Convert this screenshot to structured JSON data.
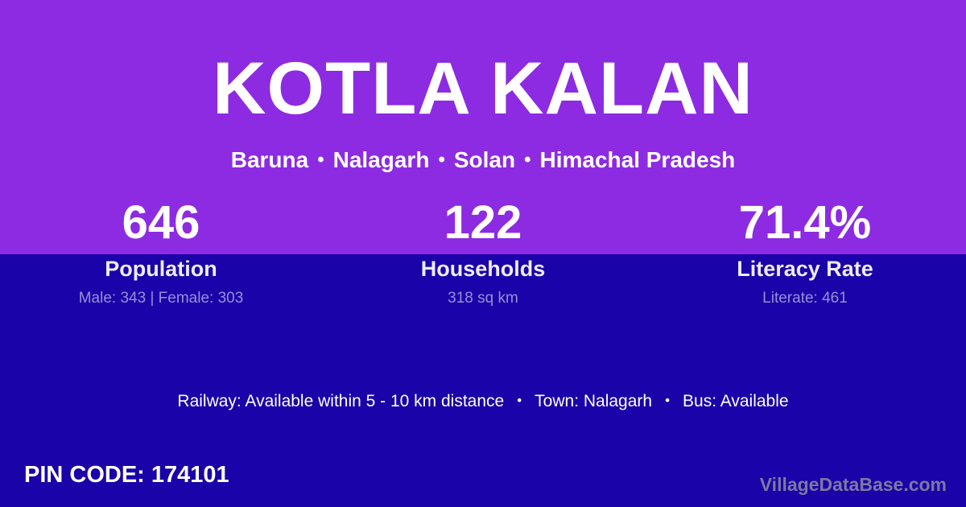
{
  "header": {
    "village_name": "KOTLA KALAN",
    "breadcrumb": {
      "parts": [
        "Baruna",
        "Nalagarh",
        "Solan",
        "Himachal Pradesh"
      ],
      "separator": "•"
    }
  },
  "stats": [
    {
      "value": "646",
      "label": "Population",
      "detail": "Male: 343 | Female: 303"
    },
    {
      "value": "122",
      "label": "Households",
      "detail": "318 sq km"
    },
    {
      "value": "71.4%",
      "label": "Literacy Rate",
      "detail": "Literate: 461"
    }
  ],
  "amenities": {
    "railway": "Railway: Available within 5 - 10 km distance",
    "town": "Town: Nalagarh",
    "bus": "Bus: Available",
    "separator": "•"
  },
  "footer": {
    "pin_code": "PIN CODE: 174101",
    "watermark": "VillageDataBase.com"
  },
  "colors": {
    "top_background": "#8C2BE2",
    "bottom_background": "#1A03A8",
    "primary_text": "#FFFFFF",
    "muted_text": "rgba(255,255,255,0.55)",
    "watermark_text": "#7D78A0"
  }
}
